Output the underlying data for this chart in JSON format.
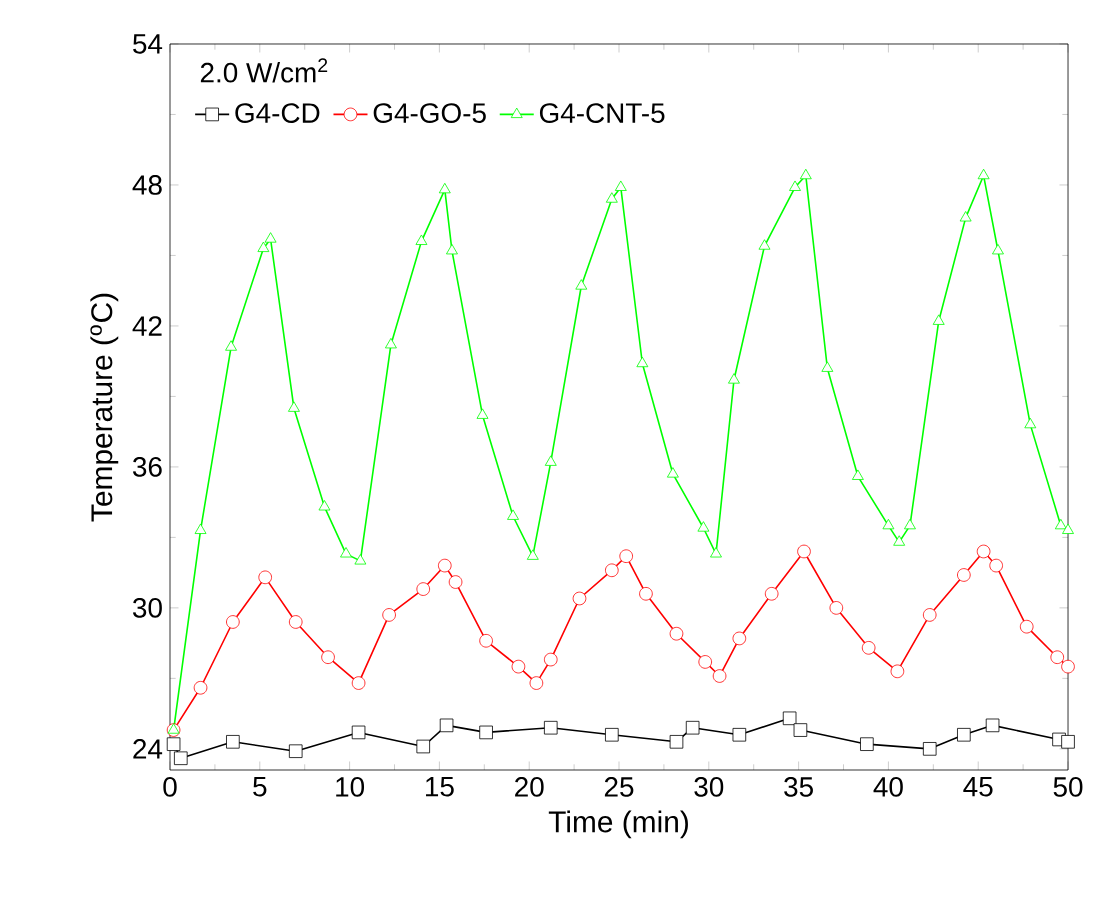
{
  "chart_data": {
    "type": "line",
    "xlabel": "Time (min)",
    "ylabel": "Temperature ($^{o}$C)",
    "annotations": [
      "2.0 W/cm$^{2}$"
    ],
    "xlim": [
      0,
      50
    ],
    "xticks": [
      0,
      5,
      10,
      15,
      20,
      25,
      30,
      35,
      40,
      45,
      50
    ],
    "ylim": [
      23.1,
      54
    ],
    "yticks": [
      24,
      30,
      36,
      42,
      48,
      54
    ],
    "legend": "top left",
    "line_style": "solid",
    "series": [
      {
        "name": "G4-CD",
        "color": "#000000",
        "marker": "square",
        "x": [
          0.2,
          0.6,
          3.5,
          7.0,
          10.5,
          14.1,
          15.4,
          17.6,
          21.2,
          24.6,
          28.2,
          29.1,
          31.7,
          34.5,
          35.1,
          38.8,
          42.3,
          44.2,
          45.8,
          49.5,
          50
        ],
        "values": [
          24.2,
          23.6,
          24.3,
          23.9,
          24.7,
          24.1,
          25.0,
          24.7,
          24.9,
          24.6,
          24.3,
          24.9,
          24.6,
          25.3,
          24.8,
          24.2,
          24.0,
          24.6,
          25.0,
          24.4,
          24.3
        ]
      },
      {
        "name": "G4-GO-5",
        "color": "#ff0000",
        "marker": "circle",
        "x": [
          0.2,
          1.7,
          3.5,
          5.3,
          7.0,
          8.8,
          10.5,
          12.2,
          14.1,
          15.3,
          15.9,
          17.6,
          19.4,
          20.4,
          21.2,
          22.8,
          24.6,
          25.4,
          26.5,
          28.2,
          29.8,
          30.6,
          31.7,
          33.5,
          35.3,
          37.1,
          38.9,
          40.5,
          42.3,
          44.2,
          45.3,
          46.0,
          47.7,
          49.4,
          50
        ],
        "values": [
          24.8,
          26.6,
          29.4,
          31.3,
          29.4,
          27.9,
          26.8,
          29.7,
          30.8,
          31.8,
          31.1,
          28.6,
          27.5,
          26.8,
          27.8,
          30.4,
          31.6,
          32.2,
          30.6,
          28.9,
          27.7,
          27.1,
          28.7,
          30.6,
          32.4,
          30.0,
          28.3,
          27.3,
          29.7,
          31.4,
          32.4,
          31.8,
          29.2,
          27.9,
          27.5
        ]
      },
      {
        "name": "G4-CNT-5",
        "color": "#00ff00",
        "marker": "triangle",
        "x": [
          0.2,
          1.7,
          3.4,
          5.2,
          5.6,
          6.9,
          8.6,
          9.8,
          10.6,
          12.3,
          14.0,
          15.3,
          15.7,
          17.4,
          19.1,
          20.2,
          21.2,
          22.9,
          24.6,
          25.1,
          26.3,
          28.0,
          29.7,
          30.4,
          31.4,
          33.1,
          34.8,
          35.4,
          36.6,
          38.3,
          40.0,
          40.6,
          41.2,
          42.8,
          44.3,
          45.3,
          46.1,
          47.9,
          49.6,
          50
        ],
        "values": [
          24.8,
          33.3,
          41.1,
          45.3,
          45.7,
          38.5,
          34.3,
          32.3,
          32.0,
          41.2,
          45.6,
          47.8,
          45.2,
          38.2,
          33.9,
          32.2,
          36.2,
          43.7,
          47.4,
          47.9,
          40.4,
          35.7,
          33.4,
          32.3,
          39.7,
          45.4,
          47.9,
          48.4,
          40.2,
          35.6,
          33.5,
          32.8,
          33.5,
          42.2,
          46.6,
          48.4,
          45.2,
          37.8,
          33.5,
          33.3
        ]
      }
    ]
  }
}
